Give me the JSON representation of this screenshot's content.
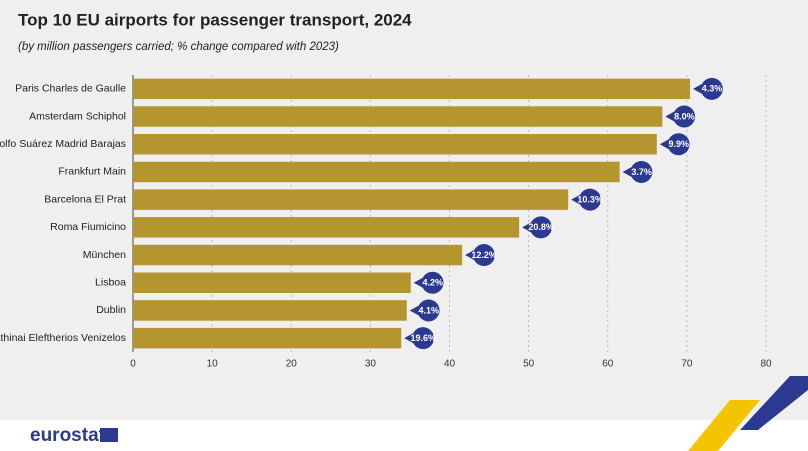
{
  "chart_data": {
    "type": "bar",
    "orientation": "horizontal",
    "title": "Top 10 EU airports for passenger transport, 2024",
    "subtitle": "(by million passengers carried; % change compared with 2023)",
    "categories": [
      "Paris Charles de Gaulle",
      "Amsterdam Schiphol",
      "Adolfo Suárez Madrid Barajas",
      "Frankfurt Main",
      "Barcelona El Prat",
      "Roma Fiumicino",
      "München",
      "Lisboa",
      "Dublin",
      "Athinai Eleftherios Venizelos"
    ],
    "values": [
      70.4,
      66.9,
      66.2,
      61.5,
      55.0,
      48.8,
      41.6,
      35.1,
      34.6,
      33.9
    ],
    "color": "#b5952f",
    "changes": {
      "values": [
        4.3,
        8.0,
        9.9,
        3.7,
        10.3,
        20.8,
        12.2,
        4.2,
        4.1,
        19.6
      ],
      "value_labels": [
        "4.3%",
        "8.0%",
        "9.9%",
        "3.7%",
        "10.3%",
        "20.8%",
        "12.2%",
        "4.2%",
        "4.1%",
        "19.6%"
      ],
      "color": "#2b3990"
    },
    "xlim": [
      0,
      80
    ],
    "xticks": [
      0,
      10,
      20,
      30,
      40,
      50,
      60,
      70,
      80
    ],
    "grid": true
  },
  "footer": {
    "logo": "eurostat"
  }
}
